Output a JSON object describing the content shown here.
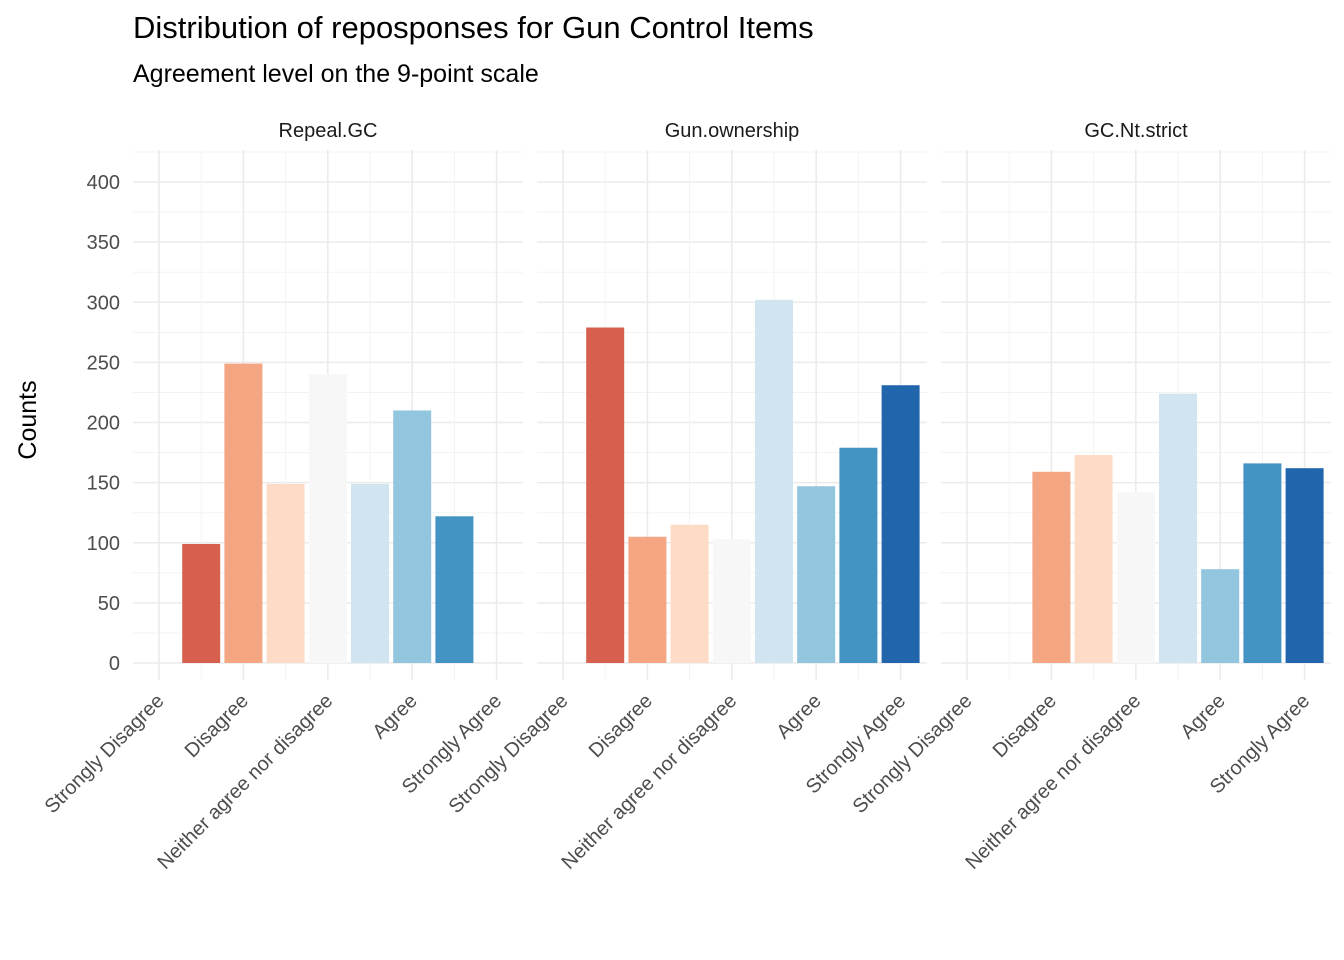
{
  "chart_data": {
    "type": "bar",
    "title": "Distribution of reposponses for Gun Control Items",
    "subtitle": "Agreement level on the 9-point scale",
    "xlabel": "",
    "ylabel": "Counts",
    "ylim": [
      0,
      420
    ],
    "y_ticks": [
      0,
      50,
      100,
      150,
      200,
      250,
      300,
      350,
      400
    ],
    "grid": true,
    "legend": "none",
    "scale_levels": 9,
    "x_tick_labels": [
      {
        "level": 1,
        "label": "Strongly Disagree"
      },
      {
        "level": 3,
        "label": "Disagree"
      },
      {
        "level": 5,
        "label": "Neither agree nor disagree"
      },
      {
        "level": 7,
        "label": "Agree"
      },
      {
        "level": 9,
        "label": "Strongly Agree"
      }
    ],
    "level_colors": [
      "#b2182b",
      "#d6604d",
      "#f4a582",
      "#fddbc7",
      "#f7f7f7",
      "#d1e5f0",
      "#92c5de",
      "#4393c3",
      "#2166ac"
    ],
    "facets": [
      {
        "name": "Repeal.GC",
        "levels": [
          1,
          2,
          3,
          4,
          5,
          6,
          7,
          8,
          9
        ],
        "values": [
          0,
          99,
          249,
          149,
          240,
          149,
          210,
          122,
          0
        ]
      },
      {
        "name": "Gun.ownership",
        "levels": [
          1,
          2,
          3,
          4,
          5,
          6,
          7,
          8,
          9
        ],
        "values": [
          0,
          279,
          105,
          115,
          103,
          302,
          147,
          179,
          231
        ]
      },
      {
        "name": "GC.Nt.strict",
        "levels": [
          1,
          2,
          3,
          4,
          5,
          6,
          7,
          8,
          9
        ],
        "values": [
          0,
          0,
          159,
          173,
          142,
          224,
          78,
          166,
          162
        ]
      }
    ]
  }
}
